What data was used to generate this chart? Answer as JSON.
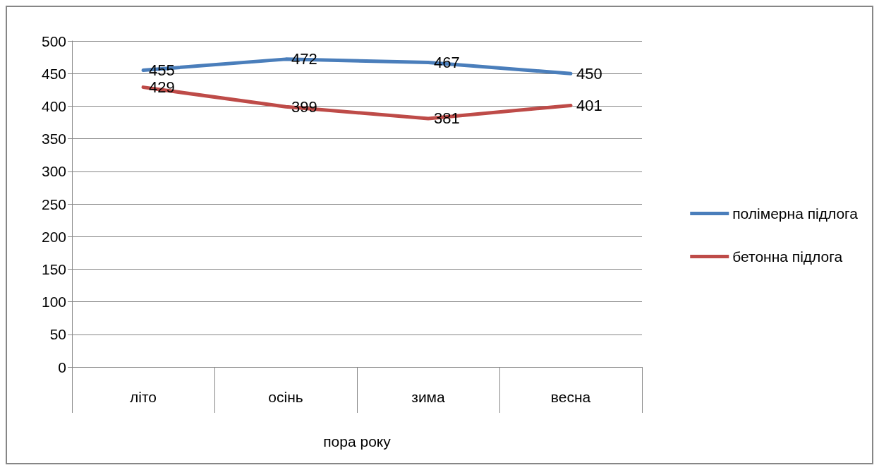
{
  "chart_data": {
    "type": "line",
    "xlabel": "пора року",
    "categories": [
      "літо",
      "осінь",
      "зима",
      "весна"
    ],
    "series": [
      {
        "name": "полімерна підлога",
        "color": "#4a7ebb",
        "values": [
          455,
          472,
          467,
          450
        ]
      },
      {
        "name": "бетонна підлога",
        "color": "#be4b48",
        "values": [
          429,
          399,
          381,
          401
        ]
      }
    ],
    "ylim": [
      0,
      500
    ],
    "yticks": [
      0,
      50,
      100,
      150,
      200,
      250,
      300,
      350,
      400,
      450,
      500
    ],
    "grid": "y",
    "legend": "right",
    "data_labels": true,
    "marker": "none",
    "line_style": "solid"
  }
}
